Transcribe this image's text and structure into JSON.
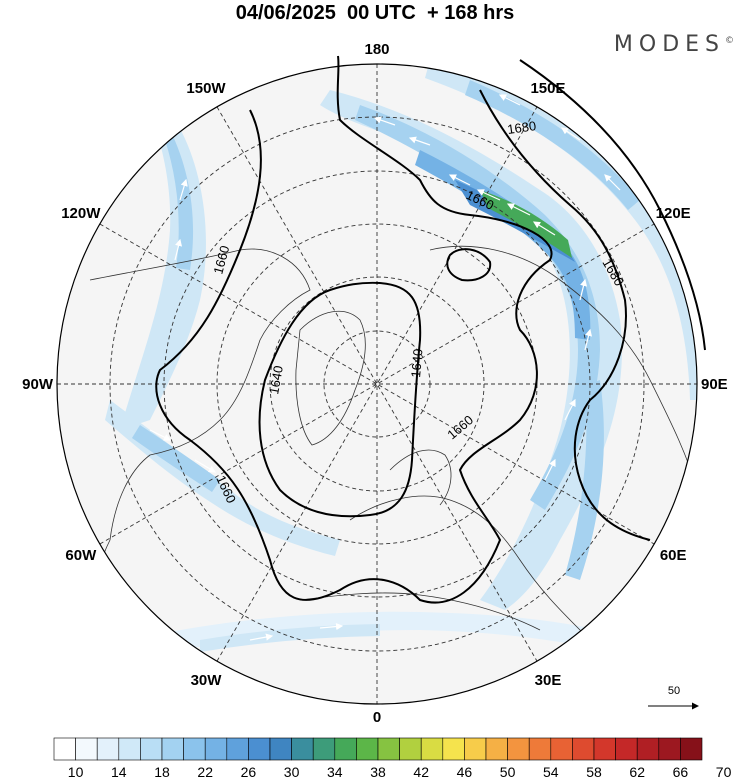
{
  "title": "04/06/2025  00 UTC  + 168 hrs",
  "brand": "MODES",
  "brand_mark": "©",
  "longitude_labels": [
    {
      "text": "180",
      "lon": 180
    },
    {
      "text": "150E",
      "lon": 150
    },
    {
      "text": "120E",
      "lon": 120
    },
    {
      "text": "90E",
      "lon": 90
    },
    {
      "text": "60E",
      "lon": 60
    },
    {
      "text": "30E",
      "lon": 30
    },
    {
      "text": "0",
      "lon": 0
    },
    {
      "text": "30W",
      "lon": -30
    },
    {
      "text": "60W",
      "lon": -60
    },
    {
      "text": "90W",
      "lon": -90
    },
    {
      "text": "120W",
      "lon": -120
    },
    {
      "text": "150W",
      "lon": -150
    }
  ],
  "contour_labels": [
    "1680",
    "1660",
    "1680",
    "1660",
    "1640",
    "1640",
    "1660",
    "1660"
  ],
  "reference_vector_label": "50",
  "colorbar": {
    "colors": [
      "#ffffff",
      "#f3f9fd",
      "#e3f1fb",
      "#d0e9f8",
      "#b9def5",
      "#a3d2f1",
      "#8bc3ec",
      "#74b2e5",
      "#5fa1dc",
      "#4b8fd1",
      "#3f85c1",
      "#3a8e9e",
      "#3d9c7a",
      "#45a959",
      "#5cb648",
      "#86c341",
      "#b1d03f",
      "#d9dc43",
      "#f5e34d",
      "#f7cc4a",
      "#f5b045",
      "#f3943f",
      "#ee7a39",
      "#e86234",
      "#de4b2f",
      "#d3372b",
      "#c42828",
      "#b01f24",
      "#9c1820",
      "#861119"
    ],
    "labels": [
      "10",
      "14",
      "18",
      "22",
      "26",
      "30",
      "34",
      "38",
      "42",
      "46",
      "50",
      "54",
      "58",
      "62",
      "66",
      "70"
    ]
  }
}
